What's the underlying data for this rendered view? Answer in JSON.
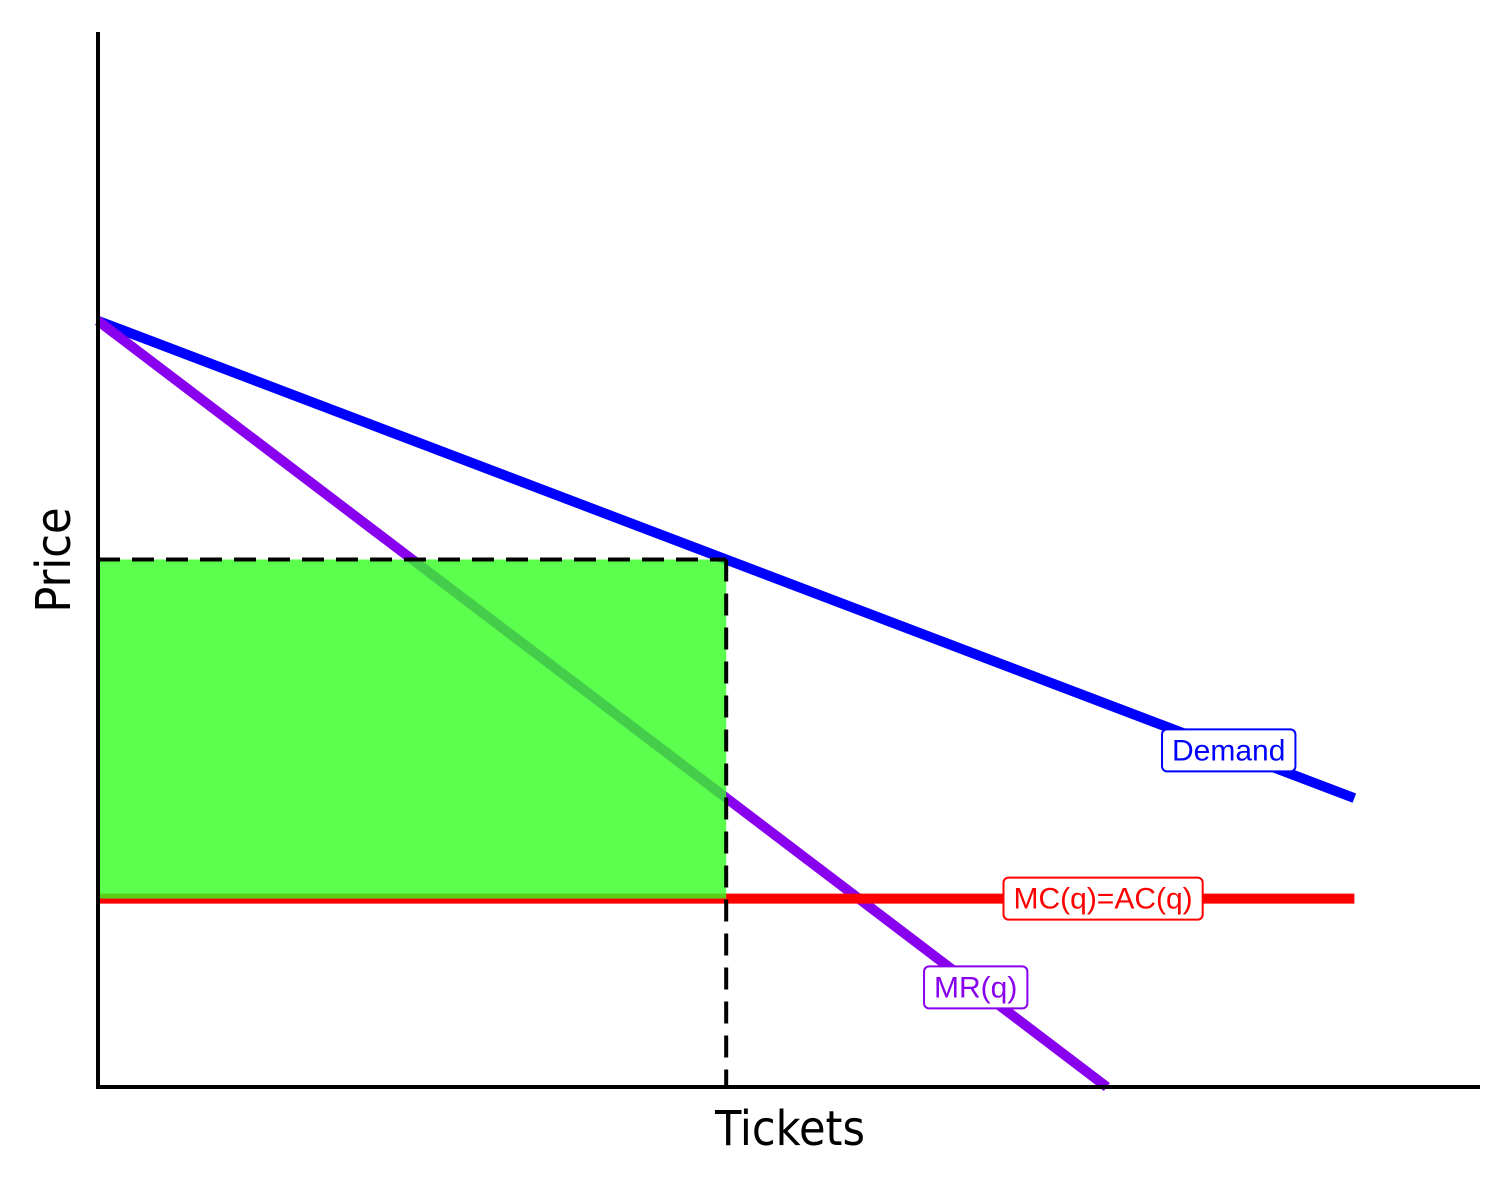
{
  "chart_data": {
    "type": "line",
    "xlabel": "Tickets",
    "ylabel": "Price",
    "xlim": [
      0,
      11
    ],
    "ylim": [
      0,
      8.4
    ],
    "series": [
      {
        "name": "Demand",
        "color": "#0000ff",
        "x": [
          0,
          10
        ],
        "values": [
          6.1,
          2.3
        ]
      },
      {
        "name": "MR(q)",
        "color": "#8800ee",
        "x": [
          0,
          8.03
        ],
        "values": [
          6.1,
          0
        ]
      },
      {
        "name": "MC(q)=AC(q)",
        "color": "#ff0000",
        "x": [
          0,
          10
        ],
        "values": [
          1.5,
          1.5
        ]
      }
    ],
    "profit_area": {
      "quantity": 5,
      "price": 4.2,
      "cost": 1.5,
      "color": "#33ff22"
    }
  }
}
